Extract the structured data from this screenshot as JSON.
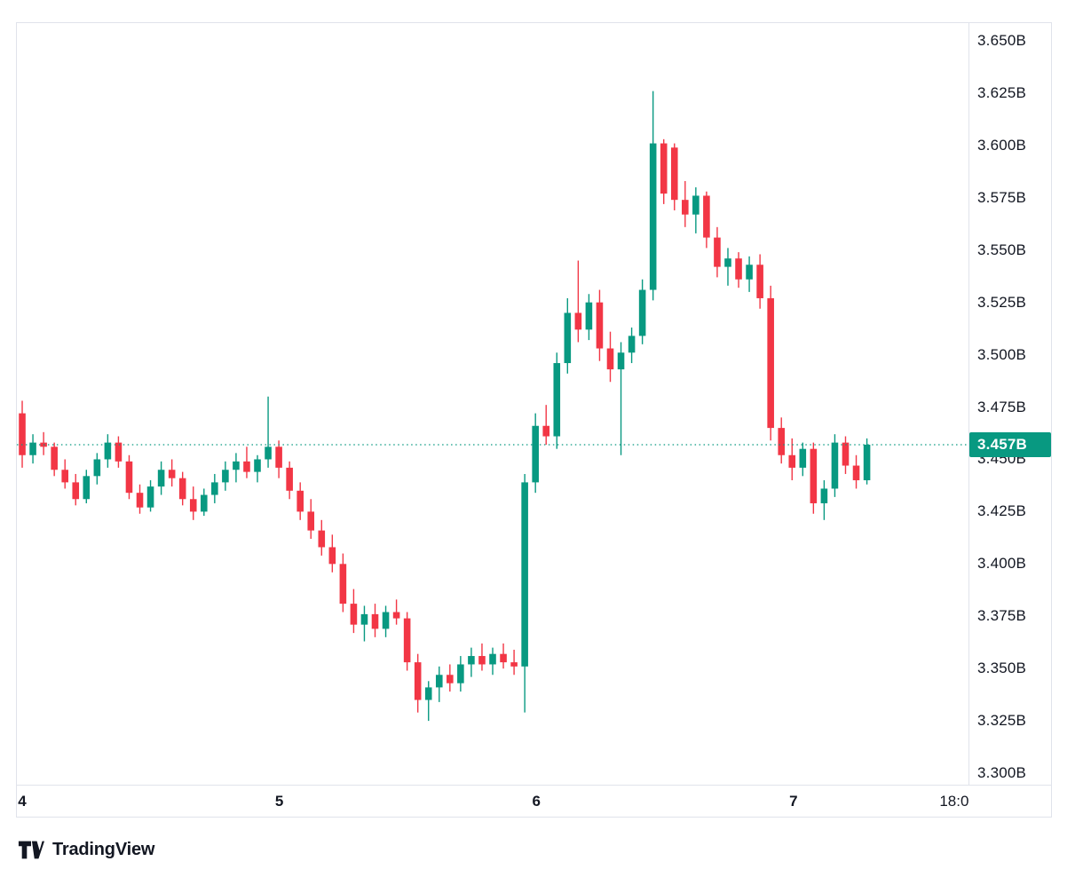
{
  "branding": {
    "logo_text": "TradingView"
  },
  "chart_data": {
    "type": "candlestick",
    "title": "",
    "xlabel": "",
    "ylabel": "",
    "unit_suffix": "B",
    "ylim": [
      3.2945,
      3.6585
    ],
    "slot_count": 89,
    "grid": false,
    "colors": {
      "up": "#089981",
      "down": "#f23645",
      "price_line": "#089981",
      "price_badge_bg": "#089981",
      "price_badge_text": "#ffffff",
      "axis_text": "#131722",
      "border": "#e0e3eb"
    },
    "price_line": {
      "value": 3.457,
      "label": "3.457B"
    },
    "y_ticks": [
      {
        "value": 3.65,
        "label": "3.650B"
      },
      {
        "value": 3.625,
        "label": "3.625B"
      },
      {
        "value": 3.6,
        "label": "3.600B"
      },
      {
        "value": 3.575,
        "label": "3.575B"
      },
      {
        "value": 3.55,
        "label": "3.550B"
      },
      {
        "value": 3.525,
        "label": "3.525B"
      },
      {
        "value": 3.5,
        "label": "3.500B"
      },
      {
        "value": 3.475,
        "label": "3.475B"
      },
      {
        "value": 3.45,
        "label": "3.450B"
      },
      {
        "value": 3.425,
        "label": "3.425B"
      },
      {
        "value": 3.4,
        "label": "3.400B"
      },
      {
        "value": 3.375,
        "label": "3.375B"
      },
      {
        "value": 3.35,
        "label": "3.350B"
      },
      {
        "value": 3.325,
        "label": "3.325B"
      },
      {
        "value": 3.3,
        "label": "3.300B"
      }
    ],
    "x_ticks": [
      {
        "index": 0,
        "label": "4",
        "strong": true
      },
      {
        "index": 24,
        "label": "5",
        "strong": true
      },
      {
        "index": 48,
        "label": "6",
        "strong": true
      },
      {
        "index": 72,
        "label": "7",
        "strong": true
      },
      {
        "index": 87,
        "label": "18:0",
        "strong": false
      }
    ],
    "candles": [
      [
        3.472,
        3.478,
        3.446,
        3.452
      ],
      [
        3.452,
        3.462,
        3.448,
        3.458
      ],
      [
        3.458,
        3.463,
        3.452,
        3.456
      ],
      [
        3.456,
        3.458,
        3.442,
        3.445
      ],
      [
        3.445,
        3.45,
        3.436,
        3.439
      ],
      [
        3.439,
        3.443,
        3.428,
        3.431
      ],
      [
        3.431,
        3.445,
        3.429,
        3.442
      ],
      [
        3.442,
        3.453,
        3.438,
        3.45
      ],
      [
        3.45,
        3.462,
        3.446,
        3.458
      ],
      [
        3.458,
        3.461,
        3.446,
        3.449
      ],
      [
        3.449,
        3.452,
        3.431,
        3.434
      ],
      [
        3.434,
        3.438,
        3.424,
        3.427
      ],
      [
        3.427,
        3.44,
        3.425,
        3.437
      ],
      [
        3.437,
        3.449,
        3.433,
        3.445
      ],
      [
        3.445,
        3.45,
        3.437,
        3.441
      ],
      [
        3.441,
        3.444,
        3.428,
        3.431
      ],
      [
        3.431,
        3.437,
        3.421,
        3.425
      ],
      [
        3.425,
        3.436,
        3.423,
        3.433
      ],
      [
        3.433,
        3.443,
        3.429,
        3.439
      ],
      [
        3.439,
        3.449,
        3.435,
        3.445
      ],
      [
        3.445,
        3.453,
        3.439,
        3.449
      ],
      [
        3.449,
        3.456,
        3.441,
        3.444
      ],
      [
        3.444,
        3.452,
        3.439,
        3.45
      ],
      [
        3.45,
        3.48,
        3.446,
        3.456
      ],
      [
        3.456,
        3.459,
        3.441,
        3.446
      ],
      [
        3.446,
        3.449,
        3.431,
        3.435
      ],
      [
        3.435,
        3.439,
        3.421,
        3.425
      ],
      [
        3.425,
        3.431,
        3.412,
        3.416
      ],
      [
        3.416,
        3.421,
        3.404,
        3.408
      ],
      [
        3.408,
        3.414,
        3.396,
        3.4
      ],
      [
        3.4,
        3.405,
        3.377,
        3.381
      ],
      [
        3.381,
        3.388,
        3.367,
        3.371
      ],
      [
        3.371,
        3.38,
        3.363,
        3.376
      ],
      [
        3.376,
        3.381,
        3.365,
        3.369
      ],
      [
        3.369,
        3.38,
        3.365,
        3.377
      ],
      [
        3.377,
        3.383,
        3.371,
        3.374
      ],
      [
        3.374,
        3.377,
        3.349,
        3.353
      ],
      [
        3.353,
        3.357,
        3.329,
        3.335
      ],
      [
        3.335,
        3.344,
        3.325,
        3.341
      ],
      [
        3.341,
        3.351,
        3.334,
        3.347
      ],
      [
        3.347,
        3.352,
        3.339,
        3.343
      ],
      [
        3.343,
        3.356,
        3.339,
        3.352
      ],
      [
        3.352,
        3.36,
        3.346,
        3.356
      ],
      [
        3.356,
        3.362,
        3.349,
        3.352
      ],
      [
        3.352,
        3.36,
        3.347,
        3.357
      ],
      [
        3.357,
        3.362,
        3.35,
        3.353
      ],
      [
        3.353,
        3.359,
        3.347,
        3.351
      ],
      [
        3.351,
        3.443,
        3.329,
        3.439
      ],
      [
        3.439,
        3.472,
        3.434,
        3.466
      ],
      [
        3.466,
        3.476,
        3.457,
        3.461
      ],
      [
        3.461,
        3.501,
        3.455,
        3.496
      ],
      [
        3.496,
        3.527,
        3.491,
        3.52
      ],
      [
        3.52,
        3.545,
        3.506,
        3.512
      ],
      [
        3.512,
        3.529,
        3.507,
        3.525
      ],
      [
        3.525,
        3.531,
        3.497,
        3.503
      ],
      [
        3.503,
        3.511,
        3.487,
        3.493
      ],
      [
        3.493,
        3.506,
        3.452,
        3.501
      ],
      [
        3.501,
        3.513,
        3.496,
        3.509
      ],
      [
        3.509,
        3.536,
        3.505,
        3.531
      ],
      [
        3.531,
        3.626,
        3.526,
        3.601
      ],
      [
        3.601,
        3.603,
        3.572,
        3.577
      ],
      [
        3.599,
        3.601,
        3.569,
        3.574
      ],
      [
        3.574,
        3.583,
        3.561,
        3.567
      ],
      [
        3.567,
        3.58,
        3.558,
        3.576
      ],
      [
        3.576,
        3.578,
        3.551,
        3.556
      ],
      [
        3.556,
        3.561,
        3.537,
        3.542
      ],
      [
        3.542,
        3.551,
        3.533,
        3.546
      ],
      [
        3.546,
        3.549,
        3.532,
        3.536
      ],
      [
        3.536,
        3.547,
        3.53,
        3.543
      ],
      [
        3.543,
        3.548,
        3.522,
        3.527
      ],
      [
        3.527,
        3.533,
        3.459,
        3.465
      ],
      [
        3.465,
        3.47,
        3.448,
        3.452
      ],
      [
        3.452,
        3.46,
        3.44,
        3.446
      ],
      [
        3.446,
        3.458,
        3.442,
        3.455
      ],
      [
        3.455,
        3.458,
        3.424,
        3.429
      ],
      [
        3.429,
        3.44,
        3.421,
        3.436
      ],
      [
        3.436,
        3.462,
        3.432,
        3.458
      ],
      [
        3.458,
        3.461,
        3.443,
        3.447
      ],
      [
        3.447,
        3.452,
        3.436,
        3.44
      ],
      [
        3.44,
        3.46,
        3.438,
        3.457
      ]
    ]
  }
}
